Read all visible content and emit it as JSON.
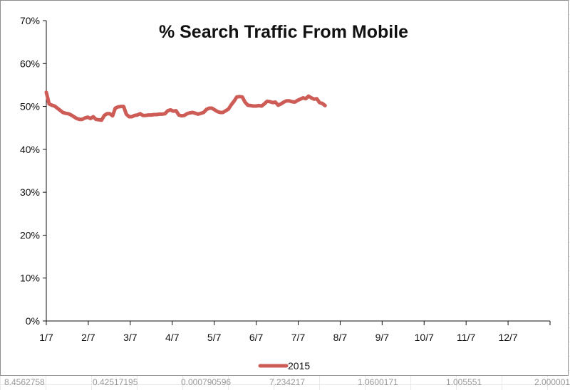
{
  "sheet": {
    "background_cells": [
      "8.4562758",
      "0.42517195",
      "0.000790596",
      "7.234217",
      "1.0600171",
      "1.005551",
      "2.000001"
    ]
  },
  "chart_data": {
    "type": "line",
    "title": "% Search Traffic From Mobile",
    "xlabel": "",
    "ylabel": "",
    "x_ticks": [
      "1/7",
      "2/7",
      "3/7",
      "4/7",
      "5/7",
      "6/7",
      "7/7",
      "8/7",
      "9/7",
      "10/7",
      "11/7",
      "12/7"
    ],
    "y_ticks": [
      "0%",
      "10%",
      "20%",
      "30%",
      "40%",
      "50%",
      "60%",
      "70%"
    ],
    "ylim": [
      0,
      70
    ],
    "x_range_days": [
      0,
      365
    ],
    "grid": false,
    "legend": "bottom",
    "series": [
      {
        "name": "2015",
        "color": "#cd5c57",
        "points": [
          [
            0,
            53.3
          ],
          [
            1,
            52.0
          ],
          [
            2,
            50.6
          ],
          [
            4,
            50.3
          ],
          [
            6,
            50.1
          ],
          [
            8,
            49.6
          ],
          [
            10,
            49.1
          ],
          [
            12,
            48.6
          ],
          [
            14,
            48.4
          ],
          [
            16,
            48.3
          ],
          [
            18,
            48.0
          ],
          [
            20,
            47.6
          ],
          [
            22,
            47.2
          ],
          [
            24,
            47.0
          ],
          [
            26,
            47.0
          ],
          [
            28,
            47.3
          ],
          [
            30,
            47.5
          ],
          [
            32,
            47.2
          ],
          [
            34,
            47.6
          ],
          [
            36,
            47.0
          ],
          [
            38,
            46.9
          ],
          [
            40,
            46.8
          ],
          [
            42,
            47.9
          ],
          [
            44,
            48.3
          ],
          [
            46,
            48.3
          ],
          [
            48,
            47.8
          ],
          [
            50,
            49.6
          ],
          [
            52,
            49.9
          ],
          [
            54,
            50.0
          ],
          [
            56,
            50.0
          ],
          [
            58,
            48.2
          ],
          [
            60,
            47.6
          ],
          [
            62,
            47.6
          ],
          [
            64,
            47.9
          ],
          [
            66,
            48.0
          ],
          [
            68,
            48.3
          ],
          [
            70,
            47.9
          ],
          [
            72,
            47.9
          ],
          [
            74,
            48.0
          ],
          [
            76,
            48.0
          ],
          [
            78,
            48.1
          ],
          [
            80,
            48.1
          ],
          [
            82,
            48.2
          ],
          [
            84,
            48.2
          ],
          [
            86,
            48.3
          ],
          [
            88,
            49.0
          ],
          [
            90,
            49.2
          ],
          [
            92,
            48.9
          ],
          [
            94,
            49.0
          ],
          [
            96,
            48.0
          ],
          [
            98,
            47.8
          ],
          [
            100,
            47.9
          ],
          [
            102,
            48.3
          ],
          [
            104,
            48.5
          ],
          [
            106,
            48.6
          ],
          [
            108,
            48.4
          ],
          [
            110,
            48.2
          ],
          [
            112,
            48.4
          ],
          [
            114,
            48.6
          ],
          [
            116,
            49.3
          ],
          [
            118,
            49.6
          ],
          [
            120,
            49.6
          ],
          [
            122,
            49.2
          ],
          [
            124,
            48.8
          ],
          [
            126,
            48.6
          ],
          [
            128,
            48.6
          ],
          [
            130,
            49.0
          ],
          [
            132,
            49.4
          ],
          [
            134,
            50.4
          ],
          [
            136,
            51.2
          ],
          [
            138,
            52.2
          ],
          [
            140,
            52.3
          ],
          [
            142,
            52.2
          ],
          [
            144,
            51.0
          ],
          [
            146,
            50.3
          ],
          [
            148,
            50.2
          ],
          [
            150,
            50.1
          ],
          [
            152,
            50.1
          ],
          [
            154,
            50.2
          ],
          [
            156,
            50.1
          ],
          [
            158,
            50.6
          ],
          [
            160,
            51.2
          ],
          [
            162,
            51.1
          ],
          [
            164,
            50.9
          ],
          [
            166,
            51.0
          ],
          [
            168,
            50.3
          ],
          [
            170,
            50.6
          ],
          [
            172,
            51.0
          ],
          [
            174,
            51.3
          ],
          [
            176,
            51.3
          ],
          [
            178,
            51.1
          ],
          [
            180,
            51.0
          ],
          [
            182,
            51.4
          ],
          [
            184,
            51.7
          ],
          [
            186,
            52.0
          ],
          [
            188,
            51.8
          ],
          [
            190,
            52.4
          ],
          [
            192,
            52.0
          ],
          [
            194,
            51.7
          ],
          [
            196,
            51.8
          ],
          [
            198,
            50.9
          ],
          [
            200,
            50.7
          ],
          [
            202,
            50.2
          ]
        ]
      }
    ]
  }
}
